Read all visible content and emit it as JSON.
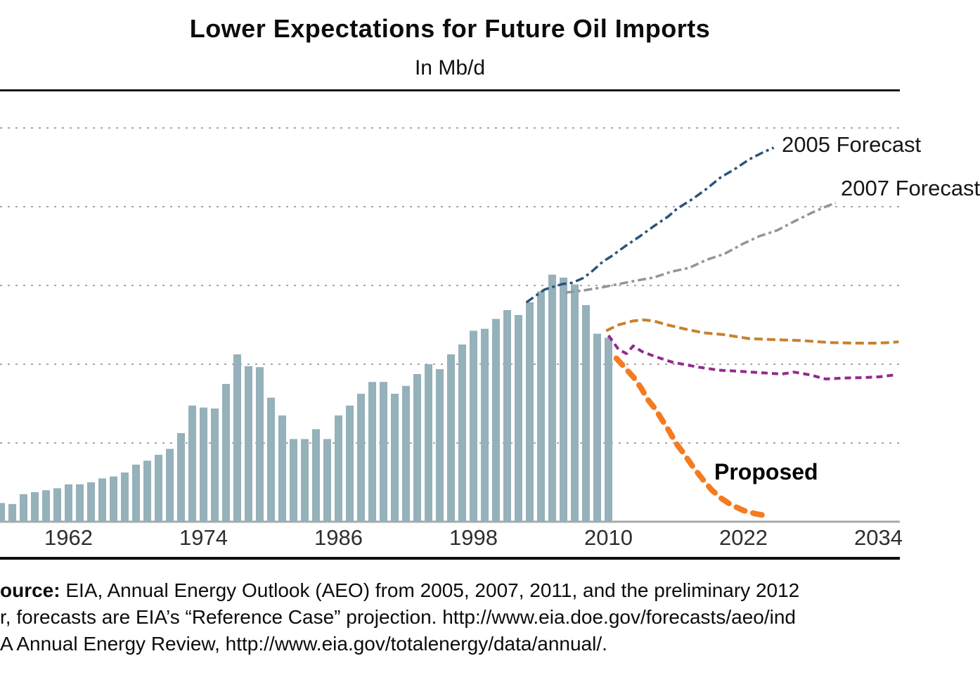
{
  "title": "Lower Expectations for Future Oil Imports",
  "subtitle": "In Mb/d",
  "annotations": {
    "forecast_2005": "2005 Forecast",
    "forecast_2007": "2007 Forecast",
    "proposed": "Proposed"
  },
  "footer": {
    "line1_bold": "ource:",
    "line1_rest": " EIA, Annual Energy Outlook (AEO) from 2005, 2007, 2011, and the preliminary 2012",
    "line2": "r, forecasts are EIA’s “Reference Case” projection. http://www.eia.doe.gov/forecasts/aeo/ind",
    "line3": "A Annual Energy Review, http://www.eia.gov/totalenergy/data/annual/."
  },
  "chart_data": {
    "type": "bar+line",
    "title": "Lower Expectations for Future Oil Imports",
    "ylabel": "Mb/d",
    "ylim": [
      0,
      21.6
    ],
    "grid": "dotted horizontal, unlabeled",
    "gridline_values": [
      4,
      8,
      12,
      16,
      20
    ],
    "x_ticks": [
      "1962",
      "1974",
      "1986",
      "1998",
      "2010",
      "2022",
      "2034"
    ],
    "bars": {
      "name": "historical-net-oil-imports",
      "color": "#95b1ba",
      "start_year": 1956,
      "values": [
        0.95,
        0.9,
        1.4,
        1.5,
        1.6,
        1.7,
        1.9,
        1.9,
        2.0,
        2.2,
        2.3,
        2.5,
        2.9,
        3.1,
        3.4,
        3.7,
        4.5,
        5.9,
        5.8,
        5.75,
        7.0,
        8.5,
        7.9,
        7.85,
        6.3,
        5.4,
        4.2,
        4.2,
        4.7,
        4.2,
        5.4,
        5.9,
        6.5,
        7.1,
        7.1,
        6.5,
        6.9,
        7.5,
        8.0,
        7.75,
        8.5,
        9.0,
        9.7,
        9.8,
        10.3,
        10.75,
        10.5,
        11.15,
        11.7,
        12.55,
        12.4,
        12.05,
        11.0,
        9.55,
        9.35
      ]
    },
    "series": [
      {
        "name": "2005-forecast",
        "label": "2005 Forecast",
        "color": "#2e5378",
        "width": 3.5,
        "dash": "12 5 4 5",
        "points": [
          [
            2002.7,
            11.14
          ],
          [
            2004.3,
            11.79
          ],
          [
            2005.9,
            12.07
          ],
          [
            2006.8,
            12.14
          ],
          [
            2007.8,
            12.39
          ],
          [
            2008.6,
            12.75
          ],
          [
            2009.5,
            13.21
          ],
          [
            2010.3,
            13.5
          ],
          [
            2011.5,
            14.0
          ],
          [
            2012.8,
            14.5
          ],
          [
            2014.0,
            15.0
          ],
          [
            2015.3,
            15.5
          ],
          [
            2016.1,
            15.9
          ],
          [
            2017.5,
            16.4
          ],
          [
            2018.7,
            16.9
          ],
          [
            2020.0,
            17.5
          ],
          [
            2021.2,
            17.9
          ],
          [
            2022.5,
            18.4
          ],
          [
            2023.7,
            18.75
          ],
          [
            2024.7,
            19.0
          ]
        ]
      },
      {
        "name": "2007-forecast",
        "label": "2007 Forecast",
        "color": "#8d969d",
        "width": 3.5,
        "dash": "12 5 4 5",
        "points": [
          [
            2006.2,
            11.64
          ],
          [
            2007.8,
            11.75
          ],
          [
            2009.4,
            11.9
          ],
          [
            2010.9,
            12.07
          ],
          [
            2012.5,
            12.25
          ],
          [
            2014.0,
            12.4
          ],
          [
            2015.6,
            12.7
          ],
          [
            2017.2,
            12.9
          ],
          [
            2018.7,
            13.3
          ],
          [
            2020.3,
            13.6
          ],
          [
            2021.9,
            14.1
          ],
          [
            2023.4,
            14.5
          ],
          [
            2025.0,
            14.8
          ],
          [
            2026.5,
            15.25
          ],
          [
            2028.1,
            15.7
          ],
          [
            2029.3,
            16.0
          ],
          [
            2030.2,
            16.2
          ]
        ]
      },
      {
        "name": "unlabeled-orange-forecast",
        "label": "",
        "color": "#c8812f",
        "width": 4,
        "dash": "12 6",
        "points": [
          [
            2009.8,
            9.7
          ],
          [
            2010.9,
            10.0
          ],
          [
            2012.2,
            10.2
          ],
          [
            2013.1,
            10.25
          ],
          [
            2014.0,
            10.2
          ],
          [
            2015.2,
            10.0
          ],
          [
            2016.7,
            9.8
          ],
          [
            2018.4,
            9.6
          ],
          [
            2020.3,
            9.5
          ],
          [
            2022.5,
            9.3
          ],
          [
            2024.7,
            9.25
          ],
          [
            2027.2,
            9.2
          ],
          [
            2029.7,
            9.1
          ],
          [
            2031.8,
            9.07
          ],
          [
            2033.7,
            9.07
          ],
          [
            2035.0,
            9.1
          ],
          [
            2035.8,
            9.14
          ]
        ]
      },
      {
        "name": "unlabeled-purple-forecast",
        "label": "",
        "color": "#932a8e",
        "width": 4,
        "dash": "9 6",
        "points": [
          [
            2010.0,
            9.46
          ],
          [
            2010.9,
            8.75
          ],
          [
            2011.6,
            8.54
          ],
          [
            2012.2,
            8.93
          ],
          [
            2013.0,
            8.64
          ],
          [
            2014.1,
            8.4
          ],
          [
            2015.7,
            8.1
          ],
          [
            2017.9,
            7.86
          ],
          [
            2019.8,
            7.7
          ],
          [
            2021.7,
            7.64
          ],
          [
            2023.5,
            7.57
          ],
          [
            2025.4,
            7.5
          ],
          [
            2026.5,
            7.6
          ],
          [
            2027.9,
            7.46
          ],
          [
            2029.3,
            7.25
          ],
          [
            2030.9,
            7.3
          ],
          [
            2032.7,
            7.32
          ],
          [
            2034.1,
            7.36
          ],
          [
            2035.5,
            7.46
          ]
        ]
      },
      {
        "name": "proposed",
        "label": "Proposed",
        "color": "#f47b20",
        "width": 8,
        "dash": "13 12",
        "linecap": "round",
        "points": [
          [
            2010.7,
            8.3
          ],
          [
            2011.5,
            7.8
          ],
          [
            2012.2,
            7.36
          ],
          [
            2012.9,
            6.8
          ],
          [
            2013.5,
            6.2
          ],
          [
            2014.2,
            5.7
          ],
          [
            2014.8,
            5.14
          ],
          [
            2015.4,
            4.6
          ],
          [
            2016.0,
            4.0
          ],
          [
            2016.7,
            3.46
          ],
          [
            2017.5,
            2.8
          ],
          [
            2018.4,
            2.14
          ],
          [
            2019.2,
            1.6
          ],
          [
            2020.0,
            1.2
          ],
          [
            2020.9,
            0.86
          ],
          [
            2022.0,
            0.57
          ],
          [
            2023.1,
            0.4
          ],
          [
            2024.2,
            0.29
          ]
        ]
      }
    ],
    "colors": {
      "bars": "#95b1ba",
      "gridline": "#a6a6a6",
      "axis": "#a9a9a9"
    }
  }
}
